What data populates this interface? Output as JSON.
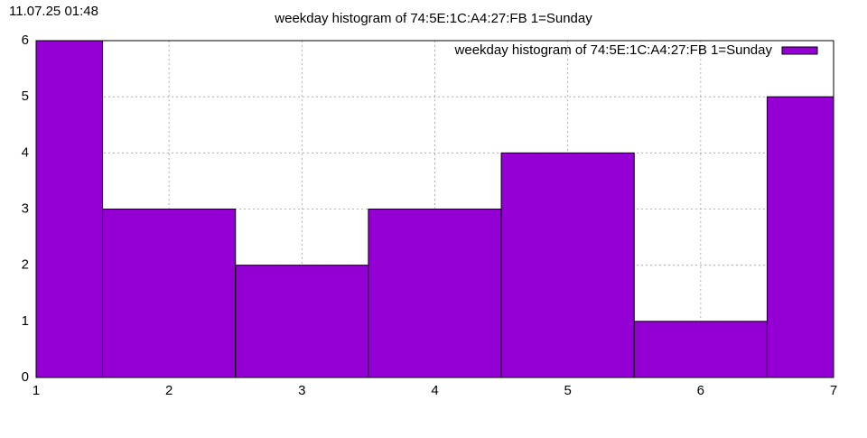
{
  "timestamp": "11.07.25 01:48",
  "chart_data": {
    "type": "bar",
    "title": "weekday histogram of 74:5E:1C:A4:27:FB 1=Sunday",
    "x": [
      1,
      2,
      3,
      4,
      5,
      6,
      7
    ],
    "series": [
      {
        "name": "weekday histogram of 74:5E:1C:A4:27:FB 1=Sunday",
        "color": "#9400d3",
        "values": [
          6,
          3,
          2,
          3,
          4,
          1,
          5
        ]
      }
    ],
    "xlim": [
      1,
      7
    ],
    "xticks": [
      1,
      2,
      3,
      4,
      5,
      6,
      7
    ],
    "ylim": [
      0,
      6
    ],
    "yticks": [
      0,
      1,
      2,
      3,
      4,
      5,
      6
    ],
    "grid": true,
    "legend": "top-right"
  }
}
